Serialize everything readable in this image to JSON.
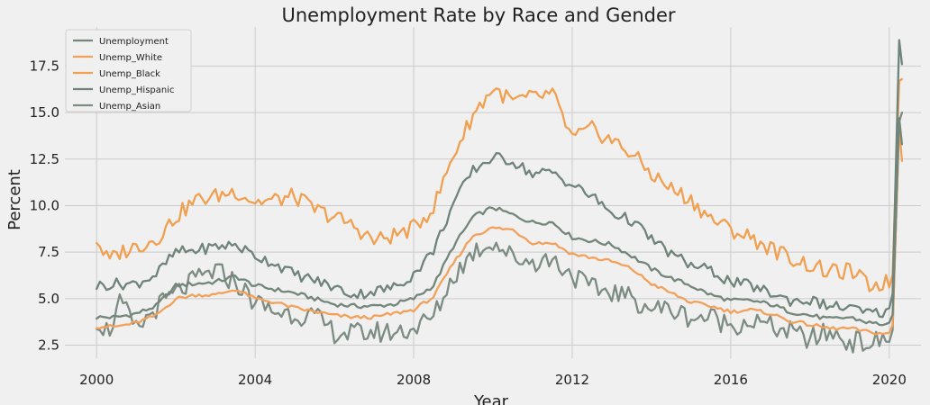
{
  "chart_data": {
    "type": "line",
    "title": "Unemployment Rate by Race and Gender",
    "xlabel": "Year",
    "ylabel": "Percent",
    "xlim": [
      1999.2,
      2020.8
    ],
    "ylim": [
      1.8,
      19.6
    ],
    "xticks": [
      2000,
      2004,
      2008,
      2012,
      2016,
      2020
    ],
    "yticks": [
      2.5,
      5.0,
      7.5,
      10.0,
      12.5,
      15.0,
      17.5
    ],
    "ytick_labels": [
      "2.5",
      "5.0",
      "7.5",
      "10.0",
      "12.5",
      "15.0",
      "17.5"
    ],
    "grid": true,
    "legend_position": "top-left",
    "series": [
      {
        "name": "Unemployment",
        "color": "#73867a",
        "points": [
          [
            2000.0,
            4.0
          ],
          [
            2000.5,
            4.0
          ],
          [
            2001.0,
            4.2
          ],
          [
            2001.5,
            4.6
          ],
          [
            2002.0,
            5.7
          ],
          [
            2002.5,
            5.8
          ],
          [
            2003.0,
            5.9
          ],
          [
            2003.5,
            6.2
          ],
          [
            2004.0,
            5.7
          ],
          [
            2004.5,
            5.5
          ],
          [
            2005.0,
            5.3
          ],
          [
            2005.5,
            5.0
          ],
          [
            2006.0,
            4.7
          ],
          [
            2006.5,
            4.6
          ],
          [
            2007.0,
            4.6
          ],
          [
            2007.5,
            4.7
          ],
          [
            2008.0,
            5.0
          ],
          [
            2008.5,
            5.7
          ],
          [
            2009.0,
            7.8
          ],
          [
            2009.5,
            9.4
          ],
          [
            2010.0,
            9.9
          ],
          [
            2010.5,
            9.5
          ],
          [
            2011.0,
            9.1
          ],
          [
            2011.5,
            9.1
          ],
          [
            2012.0,
            8.3
          ],
          [
            2012.5,
            8.1
          ],
          [
            2013.0,
            7.9
          ],
          [
            2013.5,
            7.3
          ],
          [
            2014.0,
            6.6
          ],
          [
            2014.5,
            6.1
          ],
          [
            2015.0,
            5.7
          ],
          [
            2015.5,
            5.2
          ],
          [
            2016.0,
            4.9
          ],
          [
            2016.5,
            4.9
          ],
          [
            2017.0,
            4.7
          ],
          [
            2017.5,
            4.3
          ],
          [
            2018.0,
            4.1
          ],
          [
            2018.5,
            3.9
          ],
          [
            2019.0,
            4.0
          ],
          [
            2019.5,
            3.7
          ],
          [
            2020.0,
            3.6
          ],
          [
            2020.15,
            4.4
          ],
          [
            2020.25,
            14.7
          ],
          [
            2020.32,
            13.3
          ]
        ]
      },
      {
        "name": "Unemp_White",
        "color": "#f2a15b",
        "points": [
          [
            2000.0,
            3.5
          ],
          [
            2000.5,
            3.5
          ],
          [
            2001.0,
            3.7
          ],
          [
            2001.5,
            4.1
          ],
          [
            2002.0,
            5.0
          ],
          [
            2002.5,
            5.2
          ],
          [
            2003.0,
            5.2
          ],
          [
            2003.5,
            5.5
          ],
          [
            2004.0,
            5.0
          ],
          [
            2004.5,
            4.8
          ],
          [
            2005.0,
            4.5
          ],
          [
            2005.5,
            4.3
          ],
          [
            2006.0,
            4.1
          ],
          [
            2006.5,
            4.0
          ],
          [
            2007.0,
            4.0
          ],
          [
            2007.5,
            4.2
          ],
          [
            2008.0,
            4.4
          ],
          [
            2008.5,
            5.1
          ],
          [
            2009.0,
            6.9
          ],
          [
            2009.5,
            8.4
          ],
          [
            2010.0,
            8.8
          ],
          [
            2010.5,
            8.7
          ],
          [
            2011.0,
            8.0
          ],
          [
            2011.5,
            8.0
          ],
          [
            2012.0,
            7.4
          ],
          [
            2012.5,
            7.2
          ],
          [
            2013.0,
            7.0
          ],
          [
            2013.5,
            6.6
          ],
          [
            2014.0,
            5.8
          ],
          [
            2014.5,
            5.3
          ],
          [
            2015.0,
            4.8
          ],
          [
            2015.5,
            4.6
          ],
          [
            2016.0,
            4.3
          ],
          [
            2016.5,
            4.4
          ],
          [
            2017.0,
            4.2
          ],
          [
            2017.5,
            3.8
          ],
          [
            2018.0,
            3.6
          ],
          [
            2018.5,
            3.4
          ],
          [
            2019.0,
            3.4
          ],
          [
            2019.5,
            3.2
          ],
          [
            2020.0,
            3.1
          ],
          [
            2020.15,
            4.0
          ],
          [
            2020.25,
            14.2
          ],
          [
            2020.32,
            12.4
          ]
        ]
      },
      {
        "name": "Unemp_Black",
        "color": "#f0a050",
        "points": [
          [
            2000.0,
            8.2
          ],
          [
            2000.3,
            7.0
          ],
          [
            2000.6,
            7.5
          ],
          [
            2001.0,
            7.8
          ],
          [
            2001.5,
            8.2
          ],
          [
            2002.0,
            9.4
          ],
          [
            2002.5,
            10.3
          ],
          [
            2003.0,
            10.5
          ],
          [
            2003.5,
            10.8
          ],
          [
            2004.0,
            10.2
          ],
          [
            2004.5,
            10.3
          ],
          [
            2005.0,
            10.5
          ],
          [
            2005.5,
            9.8
          ],
          [
            2006.0,
            9.4
          ],
          [
            2006.5,
            8.9
          ],
          [
            2007.0,
            8.1
          ],
          [
            2007.5,
            8.4
          ],
          [
            2008.0,
            8.8
          ],
          [
            2008.5,
            9.9
          ],
          [
            2009.0,
            12.7
          ],
          [
            2009.5,
            14.9
          ],
          [
            2010.0,
            16.3
          ],
          [
            2010.5,
            15.6
          ],
          [
            2011.0,
            15.8
          ],
          [
            2011.5,
            16.0
          ],
          [
            2012.0,
            13.6
          ],
          [
            2012.5,
            14.1
          ],
          [
            2013.0,
            13.5
          ],
          [
            2013.5,
            12.8
          ],
          [
            2014.0,
            11.7
          ],
          [
            2014.5,
            10.9
          ],
          [
            2015.0,
            10.3
          ],
          [
            2015.5,
            9.3
          ],
          [
            2016.0,
            8.7
          ],
          [
            2016.5,
            8.3
          ],
          [
            2017.0,
            7.7
          ],
          [
            2017.5,
            7.2
          ],
          [
            2018.0,
            6.8
          ],
          [
            2018.5,
            6.4
          ],
          [
            2019.0,
            6.5
          ],
          [
            2019.5,
            5.7
          ],
          [
            2020.0,
            5.9
          ],
          [
            2020.15,
            6.6
          ],
          [
            2020.25,
            16.7
          ],
          [
            2020.32,
            16.8
          ]
        ]
      },
      {
        "name": "Unemp_Hispanic",
        "color": "#6e8379",
        "points": [
          [
            2000.0,
            5.7
          ],
          [
            2000.5,
            5.8
          ],
          [
            2001.0,
            5.8
          ],
          [
            2001.5,
            6.3
          ],
          [
            2002.0,
            7.5
          ],
          [
            2002.5,
            7.6
          ],
          [
            2003.0,
            7.8
          ],
          [
            2003.5,
            7.9
          ],
          [
            2004.0,
            7.3
          ],
          [
            2004.5,
            6.9
          ],
          [
            2005.0,
            6.3
          ],
          [
            2005.5,
            6.0
          ],
          [
            2006.0,
            5.6
          ],
          [
            2006.5,
            5.2
          ],
          [
            2007.0,
            5.4
          ],
          [
            2007.5,
            5.6
          ],
          [
            2008.0,
            6.3
          ],
          [
            2008.5,
            7.6
          ],
          [
            2009.0,
            10.1
          ],
          [
            2009.5,
            11.9
          ],
          [
            2010.0,
            12.6
          ],
          [
            2010.5,
            12.4
          ],
          [
            2011.0,
            11.7
          ],
          [
            2011.5,
            11.8
          ],
          [
            2012.0,
            11.1
          ],
          [
            2012.5,
            10.5
          ],
          [
            2013.0,
            9.6
          ],
          [
            2013.5,
            9.2
          ],
          [
            2014.0,
            8.2
          ],
          [
            2014.5,
            7.4
          ],
          [
            2015.0,
            6.8
          ],
          [
            2015.5,
            6.5
          ],
          [
            2016.0,
            5.9
          ],
          [
            2016.5,
            5.7
          ],
          [
            2017.0,
            5.3
          ],
          [
            2017.5,
            4.9
          ],
          [
            2018.0,
            4.9
          ],
          [
            2018.5,
            4.6
          ],
          [
            2019.0,
            4.5
          ],
          [
            2019.5,
            4.2
          ],
          [
            2020.0,
            4.3
          ],
          [
            2020.15,
            6.0
          ],
          [
            2020.25,
            18.9
          ],
          [
            2020.32,
            17.6
          ]
        ]
      },
      {
        "name": "Unemp_Asian",
        "color": "#7c8c82",
        "points": [
          [
            2000.0,
            3.9
          ],
          [
            2000.3,
            3.2
          ],
          [
            2000.6,
            4.8
          ],
          [
            2001.0,
            3.3
          ],
          [
            2001.5,
            4.5
          ],
          [
            2002.0,
            5.3
          ],
          [
            2002.5,
            6.0
          ],
          [
            2003.0,
            6.5
          ],
          [
            2003.5,
            5.9
          ],
          [
            2004.0,
            4.8
          ],
          [
            2004.5,
            4.3
          ],
          [
            2005.0,
            4.2
          ],
          [
            2005.5,
            4.0
          ],
          [
            2006.0,
            3.2
          ],
          [
            2006.5,
            3.1
          ],
          [
            2007.0,
            3.2
          ],
          [
            2007.5,
            3.2
          ],
          [
            2008.0,
            3.4
          ],
          [
            2008.5,
            4.0
          ],
          [
            2009.0,
            6.2
          ],
          [
            2009.5,
            7.5
          ],
          [
            2010.0,
            8.1
          ],
          [
            2010.5,
            7.2
          ],
          [
            2011.0,
            7.0
          ],
          [
            2011.5,
            7.1
          ],
          [
            2012.0,
            6.3
          ],
          [
            2012.5,
            5.5
          ],
          [
            2013.0,
            5.4
          ],
          [
            2013.5,
            5.0
          ],
          [
            2014.0,
            4.5
          ],
          [
            2014.5,
            4.4
          ],
          [
            2015.0,
            4.0
          ],
          [
            2015.5,
            4.0
          ],
          [
            2016.0,
            3.6
          ],
          [
            2016.5,
            3.8
          ],
          [
            2017.0,
            3.5
          ],
          [
            2017.5,
            3.2
          ],
          [
            2018.0,
            2.8
          ],
          [
            2018.5,
            3.2
          ],
          [
            2019.0,
            2.7
          ],
          [
            2019.5,
            2.6
          ],
          [
            2020.0,
            2.8
          ],
          [
            2020.15,
            4.1
          ],
          [
            2020.25,
            14.5
          ],
          [
            2020.32,
            15.0
          ]
        ]
      }
    ]
  }
}
